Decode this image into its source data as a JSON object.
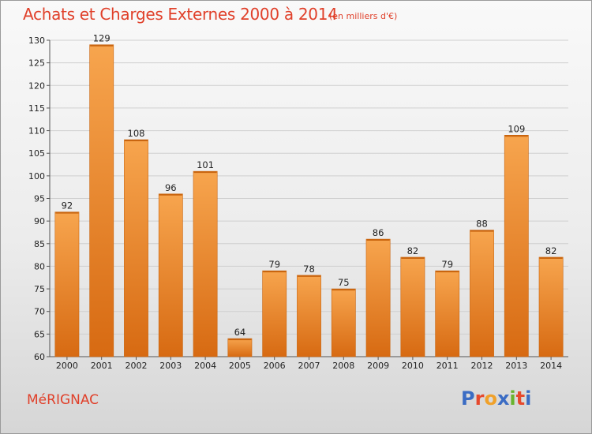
{
  "header": {
    "title": "Achats et Charges Externes 2000 à 2014",
    "subtitle": "(en milliers d'€)"
  },
  "footer": {
    "city": "MéRIGNAC",
    "brand": "Proxiti"
  },
  "colors": {
    "title": "#e0402a",
    "bar_light": "#f7a54e",
    "bar_dark": "#d76a12",
    "brand_letters": [
      "#3b6cc4",
      "#e6492d",
      "#f0a12a",
      "#3b6cc4",
      "#69b32e",
      "#e6492d",
      "#3b6cc4"
    ]
  },
  "chart_data": {
    "type": "bar",
    "title": "Achats et Charges Externes 2000 à 2014",
    "subtitle": "(en milliers d'€)",
    "categories": [
      "2000",
      "2001",
      "2002",
      "2003",
      "2004",
      "2005",
      "2006",
      "2007",
      "2008",
      "2009",
      "2010",
      "2011",
      "2012",
      "2013",
      "2014"
    ],
    "values": [
      92,
      129,
      108,
      96,
      101,
      64,
      79,
      78,
      75,
      86,
      82,
      79,
      88,
      109,
      82
    ],
    "ylim": [
      60,
      130
    ],
    "yticks": [
      60,
      65,
      70,
      75,
      80,
      85,
      90,
      95,
      100,
      105,
      110,
      115,
      120,
      125,
      130
    ],
    "grid": true,
    "legend": "none"
  }
}
